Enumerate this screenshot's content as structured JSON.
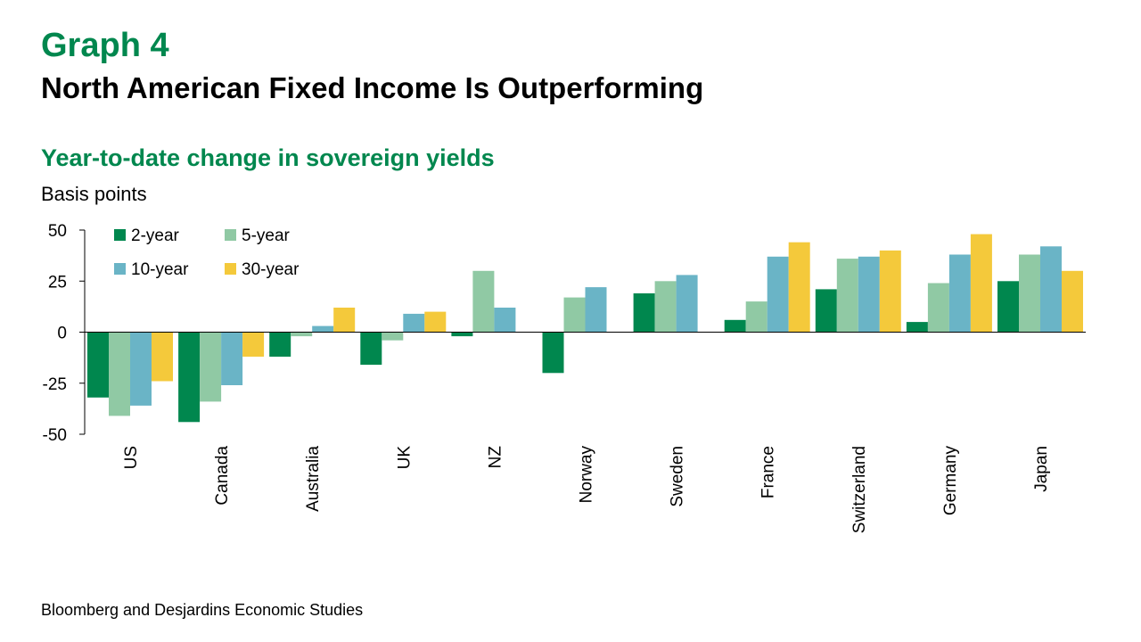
{
  "header": {
    "graph_label": "Graph 4",
    "title": "North American Fixed Income Is Outperforming"
  },
  "source": "Bloomberg and Desjardins Economic Studies",
  "chart_data": {
    "type": "bar",
    "title": "Year-to-date change in sovereign yields",
    "ylabel": "Basis points",
    "xlabel": "",
    "ylim": [
      -50,
      50
    ],
    "yticks": [
      50,
      25,
      0,
      -25,
      -50
    ],
    "grid": false,
    "legend_position": "top-left",
    "categories": [
      "US",
      "Canada",
      "Australia",
      "UK",
      "NZ",
      "Norway",
      "Sweden",
      "France",
      "Switzerland",
      "Germany",
      "Japan"
    ],
    "series": [
      {
        "name": "2-year",
        "color": "#00874e",
        "values": [
          -32,
          -44,
          -12,
          -16,
          -2,
          -20,
          19,
          6,
          21,
          5,
          25
        ]
      },
      {
        "name": "5-year",
        "color": "#90c9a4",
        "values": [
          -41,
          -34,
          -2,
          -4,
          30,
          17,
          25,
          15,
          36,
          24,
          38
        ]
      },
      {
        "name": "10-year",
        "color": "#6ab4c6",
        "values": [
          -36,
          -26,
          3,
          9,
          12,
          22,
          28,
          37,
          37,
          38,
          42
        ]
      },
      {
        "name": "30-year",
        "color": "#f4c93b",
        "values": [
          -24,
          -12,
          12,
          10,
          null,
          null,
          null,
          44,
          40,
          48,
          30
        ]
      }
    ]
  }
}
